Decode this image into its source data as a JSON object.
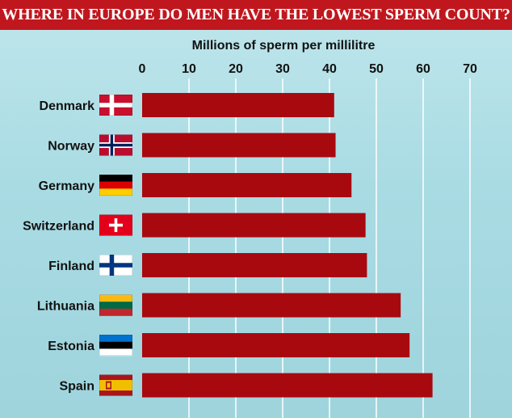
{
  "title": "WHERE IN EUROPE DO MEN HAVE THE LOWEST SPERM COUNT?",
  "colors": {
    "title_bg": "#c0171e",
    "bar": "#a8090f",
    "background": "#a9dbe3",
    "gridline": "#ffffff"
  },
  "chart_data": {
    "type": "bar",
    "orientation": "horizontal",
    "xlabel": "Millions of sperm per millilitre",
    "xlim": [
      0,
      70
    ],
    "xticks": [
      0,
      10,
      20,
      30,
      40,
      50,
      60,
      70
    ],
    "grid": true,
    "categories": [
      "Denmark",
      "Norway",
      "Germany",
      "Switzerland",
      "Finland",
      "Lithuania",
      "Estonia",
      "Spain"
    ],
    "values": [
      41,
      41.3,
      44.7,
      47.7,
      48,
      55.2,
      57.1,
      62
    ]
  },
  "flags": [
    {
      "country": "Denmark",
      "icon": "denmark-flag-icon",
      "kind": "nordic",
      "bg": "#c8102e",
      "cross": "#ffffff"
    },
    {
      "country": "Norway",
      "icon": "norway-flag-icon",
      "kind": "nordic2",
      "bg": "#ba0c2f",
      "cross": "#ffffff",
      "inner": "#00205b"
    },
    {
      "country": "Germany",
      "icon": "germany-flag-icon",
      "kind": "hstripes",
      "stripes": [
        "#000000",
        "#dd0000",
        "#ffce00"
      ]
    },
    {
      "country": "Switzerland",
      "icon": "switzerland-flag-icon",
      "kind": "swiss",
      "bg": "#e3001b",
      "cross": "#ffffff"
    },
    {
      "country": "Finland",
      "icon": "finland-flag-icon",
      "kind": "nordic",
      "bg": "#ffffff",
      "cross": "#003580"
    },
    {
      "country": "Lithuania",
      "icon": "lithuania-flag-icon",
      "kind": "hstripes",
      "stripes": [
        "#fdb913",
        "#006a44",
        "#c1272d"
      ]
    },
    {
      "country": "Estonia",
      "icon": "estonia-flag-icon",
      "kind": "hstripes",
      "stripes": [
        "#0072ce",
        "#000000",
        "#ffffff"
      ]
    },
    {
      "country": "Spain",
      "icon": "spain-flag-icon",
      "kind": "spain",
      "stripes": [
        "#aa151b",
        "#f1bf00",
        "#aa151b"
      ]
    }
  ]
}
